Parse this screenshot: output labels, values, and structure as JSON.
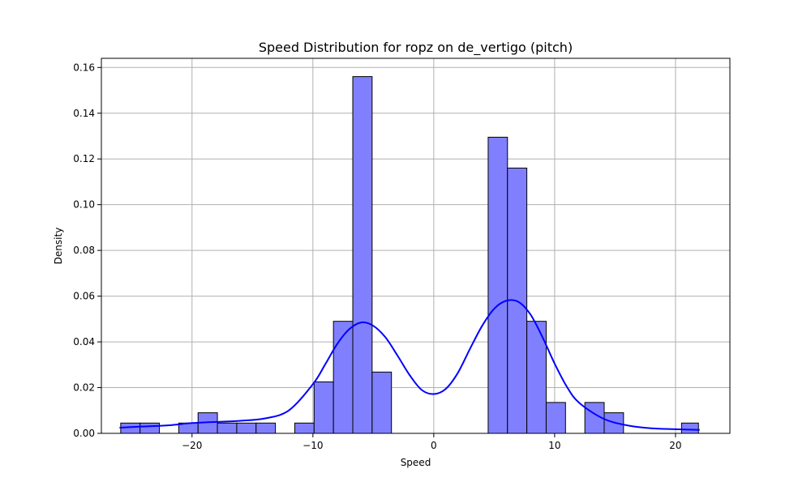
{
  "chart_data": {
    "type": "bar",
    "title": "Speed Distribution for ropz on de_vertigo (pitch)",
    "xlabel": "Speed",
    "ylabel": "Density",
    "xlim": [
      -27.5,
      24.5
    ],
    "ylim": [
      0,
      0.164
    ],
    "grid": true,
    "x_ticks": [
      -20,
      -10,
      0,
      10,
      20
    ],
    "x_tick_labels": [
      "−20",
      "−10",
      "0",
      "10",
      "20"
    ],
    "y_ticks": [
      0.0,
      0.02,
      0.04,
      0.06,
      0.08,
      0.1,
      0.12,
      0.14,
      0.16
    ],
    "y_tick_labels": [
      "0.00",
      "0.02",
      "0.04",
      "0.06",
      "0.08",
      "0.10",
      "0.12",
      "0.14",
      "0.16"
    ],
    "bin_edges": [
      -25.9,
      -24.3,
      -22.7,
      -21.1,
      -19.5,
      -17.9,
      -16.3,
      -14.7,
      -13.1,
      -11.5,
      -9.9,
      -8.3,
      -6.7,
      -5.1,
      -3.5,
      -1.9,
      -0.3,
      1.3,
      2.9,
      4.5,
      6.1,
      7.7,
      9.3,
      10.9,
      12.5,
      14.1,
      15.7,
      17.3,
      18.9,
      20.5,
      21.9
    ],
    "values": [
      0.0045,
      0.0045,
      0.0,
      0.0045,
      0.009,
      0.0045,
      0.0045,
      0.0045,
      0.0,
      0.0045,
      0.0225,
      0.049,
      0.156,
      0.0268,
      0.0,
      0.0,
      0.0,
      0.0,
      0.0,
      0.1295,
      0.116,
      0.049,
      0.0135,
      0.0,
      0.0135,
      0.009,
      0.0,
      0.0,
      0.0,
      0.0045
    ],
    "kde": {
      "x": [
        -26,
        -24,
        -22,
        -20,
        -18,
        -16,
        -14,
        -12,
        -10,
        -9,
        -8,
        -7,
        -6,
        -5,
        -4,
        -3,
        -2,
        -1,
        0,
        1,
        2,
        3,
        4,
        5,
        6,
        7,
        8,
        9,
        10,
        11,
        12,
        14,
        16,
        18,
        20,
        22
      ],
      "y": [
        0.0025,
        0.003,
        0.0035,
        0.0045,
        0.005,
        0.0055,
        0.0065,
        0.01,
        0.0215,
        0.03,
        0.039,
        0.0455,
        0.0485,
        0.047,
        0.042,
        0.034,
        0.0255,
        0.019,
        0.0172,
        0.0195,
        0.0265,
        0.037,
        0.047,
        0.0545,
        0.058,
        0.0575,
        0.052,
        0.042,
        0.0305,
        0.0205,
        0.0135,
        0.0065,
        0.0035,
        0.0022,
        0.0018,
        0.0015
      ]
    },
    "colors": {
      "bar_fill": "#8080ff",
      "bar_edge": "#000000",
      "kde_line": "#0000ff",
      "grid": "#b0b0b0"
    }
  }
}
